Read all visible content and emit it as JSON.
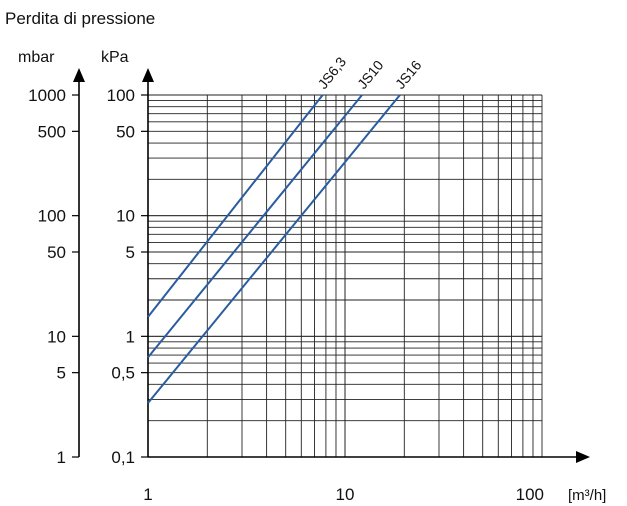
{
  "title": "Perdita di pressione",
  "axes": {
    "left_unit": "mbar",
    "right_unit": "kPa",
    "x_unit": "[m³/h]"
  },
  "y_ticks_mbar": [
    {
      "label": "1000",
      "value": 100
    },
    {
      "label": "500",
      "value": 50
    },
    {
      "label": "100",
      "value": 10
    },
    {
      "label": "50",
      "value": 5
    },
    {
      "label": "10",
      "value": 1
    },
    {
      "label": "5",
      "value": 0.5
    },
    {
      "label": "1",
      "value": 0.1
    }
  ],
  "y_ticks_kpa": [
    {
      "label": "100",
      "value": 100
    },
    {
      "label": "50",
      "value": 50
    },
    {
      "label": "10",
      "value": 10
    },
    {
      "label": "5",
      "value": 5
    },
    {
      "label": "1",
      "value": 1
    },
    {
      "label": "0,5",
      "value": 0.5
    },
    {
      "label": "0,1",
      "value": 0.1
    }
  ],
  "x_ticks": [
    {
      "label": "1",
      "value": 1
    },
    {
      "label": "10",
      "value": 10
    },
    {
      "label": "100",
      "value": 100
    }
  ],
  "colors": {
    "series": "#2a5d9f",
    "grid": "#222222",
    "axis": "#000000"
  },
  "chart_data": {
    "type": "line",
    "title": "Perdita di pressione",
    "xlabel": "[m³/h]",
    "ylabel": "kPa",
    "x_scale": "log",
    "y_scale": "log",
    "xlim": [
      1,
      100
    ],
    "ylim": [
      0.1,
      100
    ],
    "grid": true,
    "series": [
      {
        "name": "JS6,3",
        "x": [
          1,
          7.7
        ],
        "y": [
          1.45,
          100
        ]
      },
      {
        "name": "JS10",
        "x": [
          1,
          12.2
        ],
        "y": [
          0.67,
          100
        ]
      },
      {
        "name": "JS16",
        "x": [
          1,
          19
        ],
        "y": [
          0.28,
          100
        ]
      }
    ]
  }
}
